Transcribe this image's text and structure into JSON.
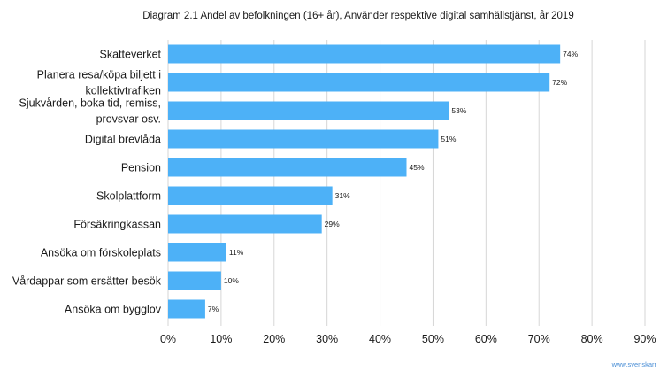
{
  "chart_data": {
    "type": "bar",
    "orientation": "horizontal",
    "title": "Diagram 2.1 Andel av befolkningen (16+ år), Använder respektive digital samhällstjänst, år 2019",
    "categories": [
      [
        "Skatteverket"
      ],
      [
        "Planera resa/köpa biljett i",
        "kollektivtrafiken"
      ],
      [
        "Sjukvården, boka tid, remiss,",
        "provsvar osv."
      ],
      [
        "Digital brevlåda"
      ],
      [
        "Pension"
      ],
      [
        "Skolplattform"
      ],
      [
        "Försäkringkassan"
      ],
      [
        "Ansöka om förskoleplats"
      ],
      [
        "Vårdappar som ersätter besök"
      ],
      [
        "Ansöka om bygglov"
      ]
    ],
    "values": [
      74,
      72,
      53,
      51,
      45,
      31,
      29,
      11,
      10,
      7
    ],
    "data_labels": [
      "74%",
      "72%",
      "53%",
      "51%",
      "45%",
      "31%",
      "29%",
      "11%",
      "10%",
      "7%"
    ],
    "xticks": [
      "0%",
      "10%",
      "20%",
      "30%",
      "40%",
      "50%",
      "60%",
      "70%",
      "80%",
      "90%"
    ],
    "xlim": [
      0,
      90
    ],
    "grid": "vertical",
    "bar_color": "#4db1f7",
    "legend": "none"
  },
  "watermark": "www.svenskarr"
}
